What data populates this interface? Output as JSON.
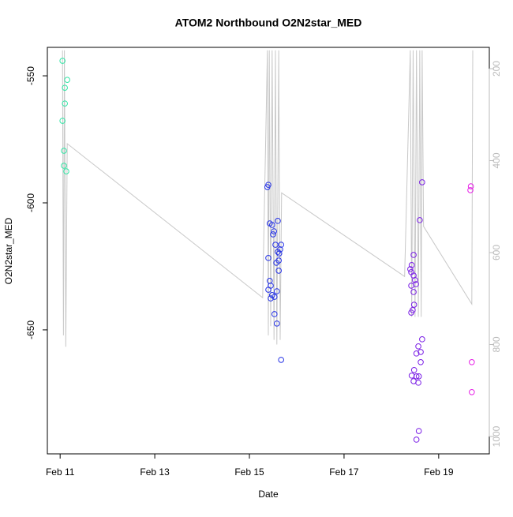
{
  "chart_data": {
    "type": "scatter",
    "title": "ATOM2 Northbound O2N2star_MED",
    "x_label": "Date",
    "y_label": "O2N2star_MED",
    "xlim": [
      10.73,
      20.07
    ],
    "xticks": [
      {
        "value": 11,
        "label": "Feb 11"
      },
      {
        "value": 13,
        "label": "Feb 13"
      },
      {
        "value": 15,
        "label": "Feb 15"
      },
      {
        "value": 17,
        "label": "Feb 17"
      },
      {
        "value": 19,
        "label": "Feb 19"
      }
    ],
    "ylim": [
      -698.8,
      -538.8
    ],
    "yticks": [
      -550,
      -600,
      -650
    ],
    "y2lim": [
      1037.8,
      153.6
    ],
    "y2ticks": [
      200,
      400,
      600,
      800,
      1000
    ],
    "y2_color": "#bbbbbb",
    "series": [
      {
        "color": "#33e6a6",
        "x": [
          11.05,
          11.15,
          11.1,
          11.1,
          11.05,
          11.08,
          11.08,
          11.13
        ],
        "values": [
          -544.1,
          -551.6,
          -554.7,
          -560.9,
          -567.7,
          -579.5,
          -585.4,
          -587.6
        ]
      },
      {
        "color": "#2633e6",
        "x": [
          15.38,
          15.4,
          15.43,
          15.48,
          15.52,
          15.5,
          15.55,
          15.6,
          15.65,
          15.67,
          15.63,
          15.4,
          15.62,
          15.57,
          15.62,
          15.43,
          15.45,
          15.4,
          15.48,
          15.45,
          15.53,
          15.58,
          15.53,
          15.58,
          15.6,
          15.67
        ],
        "values": [
          -593.8,
          -592.9,
          -608.1,
          -608.7,
          -611.2,
          -612.4,
          -616.5,
          -619.3,
          -618.3,
          -616.5,
          -619.9,
          -621.7,
          -622.7,
          -623.6,
          -626.7,
          -630.7,
          -632.6,
          -634.2,
          -636.3,
          -637.6,
          -637.0,
          -634.8,
          -643.8,
          -647.5,
          -607.1,
          -661.8
        ]
      },
      {
        "color": "#7a1ee6",
        "x": [
          18.65,
          18.6,
          18.4,
          18.43,
          18.47,
          18.42,
          18.47,
          18.5,
          18.52,
          18.42,
          18.47,
          18.48,
          18.45,
          18.42,
          18.65,
          18.57,
          18.62,
          18.53,
          18.62,
          18.48,
          18.43,
          18.53,
          18.58,
          18.47,
          18.57,
          18.58,
          18.53
        ],
        "values": [
          -591.9,
          -606.8,
          -626.1,
          -624.5,
          -620.5,
          -627.3,
          -628.6,
          -630.4,
          -632.0,
          -632.6,
          -635.1,
          -640.1,
          -642.2,
          -643.2,
          -653.7,
          -656.5,
          -658.7,
          -659.3,
          -662.7,
          -665.8,
          -668.0,
          -668.3,
          -668.3,
          -670.2,
          -670.8,
          -689.8,
          -693.2
        ]
      },
      {
        "color": "#e61ee6",
        "x": [
          19.68,
          19.67,
          19.7,
          19.7
        ],
        "values": [
          -593.5,
          -595.0,
          -662.7,
          -674.5
        ]
      },
      {
        "type": "line",
        "axis": "y2",
        "color": "#c8c8c8",
        "x": [
          11.05,
          11.07,
          11.09,
          11.12,
          11.15,
          15.28,
          15.38,
          15.4,
          15.42,
          15.45,
          15.48,
          15.52,
          15.55,
          15.58,
          15.62,
          15.65,
          15.68,
          18.28,
          18.4,
          18.43,
          18.46,
          18.5,
          18.53,
          18.57,
          18.6,
          18.63,
          18.65,
          18.68,
          19.7,
          19.72
        ],
        "values": [
          160,
          780,
          160,
          805,
          363,
          698,
          160,
          780,
          160,
          760,
          160,
          790,
          160,
          800,
          160,
          790,
          470,
          652,
          160,
          740,
          160,
          740,
          160,
          740,
          160,
          740,
          160,
          543,
          712,
          160
        ]
      }
    ]
  }
}
